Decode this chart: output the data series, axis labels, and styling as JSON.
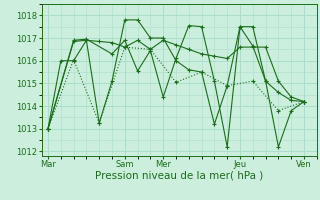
{
  "bg_color": "#cceedd",
  "grid_color": "#aaddcc",
  "line_color": "#1a6e1a",
  "xlabel": "Pression niveau de la mer( hPa )",
  "xlabel_fontsize": 7.5,
  "ylim": [
    1011.8,
    1018.5
  ],
  "yticks": [
    1012,
    1013,
    1014,
    1015,
    1016,
    1017,
    1018
  ],
  "xtick_labels": [
    "Mar",
    "Sam",
    "Mer",
    "Jeu",
    "Ven"
  ],
  "xtick_positions": [
    0,
    6,
    9,
    15,
    20
  ],
  "xlim": [
    -0.5,
    21
  ],
  "series": [
    {
      "x": [
        0,
        1,
        2,
        3,
        4,
        5,
        6,
        7,
        8,
        9,
        10,
        11,
        12,
        13,
        14,
        15,
        16,
        17,
        18,
        19,
        20
      ],
      "y": [
        1013.0,
        1016.0,
        1016.0,
        1016.9,
        1016.85,
        1016.8,
        1016.6,
        1016.9,
        1016.5,
        1016.9,
        1016.7,
        1016.5,
        1016.3,
        1016.2,
        1016.1,
        1016.6,
        1016.6,
        1016.6,
        1015.1,
        1014.4,
        1014.2
      ],
      "linestyle": "-",
      "marker": "+"
    },
    {
      "x": [
        0,
        2,
        3,
        4,
        5,
        6,
        7,
        8,
        9,
        10,
        11,
        12,
        13,
        14,
        15,
        16,
        17,
        18,
        19,
        20
      ],
      "y": [
        1013.0,
        1016.85,
        1016.9,
        1013.25,
        1015.1,
        1017.8,
        1017.8,
        1017.0,
        1017.0,
        1016.0,
        1015.6,
        1015.5,
        1013.2,
        1014.9,
        1017.5,
        1017.5,
        1015.1,
        1014.6,
        1014.25,
        1014.2
      ],
      "linestyle": "-",
      "marker": "+"
    },
    {
      "x": [
        0,
        2,
        3,
        5,
        6,
        7,
        8,
        9,
        10,
        11,
        12,
        13,
        14,
        15,
        16,
        17,
        18,
        19,
        20
      ],
      "y": [
        1013.0,
        1016.9,
        1016.95,
        1016.3,
        1016.9,
        1015.55,
        1016.45,
        1014.4,
        1016.1,
        1017.55,
        1017.5,
        1015.1,
        1012.2,
        1017.5,
        1016.65,
        1015.1,
        1012.2,
        1013.8,
        1014.2
      ],
      "linestyle": "-",
      "marker": "+"
    },
    {
      "x": [
        0,
        2,
        4,
        6,
        8,
        10,
        12,
        14,
        16,
        18,
        20
      ],
      "y": [
        1013.0,
        1016.05,
        1013.25,
        1016.6,
        1016.5,
        1015.05,
        1015.5,
        1014.9,
        1015.1,
        1013.8,
        1014.2
      ],
      "linestyle": ":",
      "marker": "+"
    }
  ]
}
